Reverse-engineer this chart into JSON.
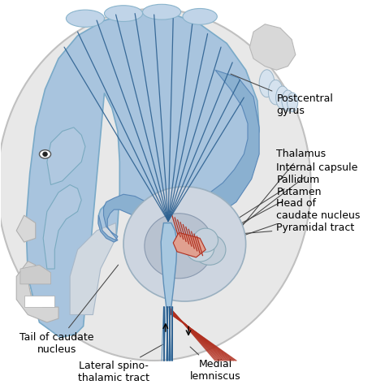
{
  "bg_color": "#ffffff",
  "blue_light": "#b8cce4",
  "blue_mid": "#7aaac8",
  "blue_dark": "#2c6090",
  "blue_cortex": "#a8c4de",
  "gray_head": "#d8d8d8",
  "gray_light": "#e0e0e0",
  "gray_med": "#c0c0c0",
  "thal_gray": "#c8cdd8",
  "thal_inner": "#b8bdc8",
  "red_stripe": "#b03020",
  "red_fill": "#d06050",
  "label_color": "#000000",
  "font_size": 9,
  "figsize": [
    4.74,
    4.79
  ],
  "dpi": 100,
  "labels": {
    "postcentral_gyrus": "Postcentral\ngyrus",
    "thalamus": "Thalamus",
    "internal_capsule": "Internal capsule",
    "pallidum": "Pallidum",
    "putamen": "Putamen",
    "head_caudate": "Head of\ncaudate nucleus",
    "pyramidal_tract": "Pyramidal tract",
    "tail_caudate": "Tail of caudate\nnucleus",
    "lateral_spino": "Lateral spino-\nthalamic tract",
    "medial_lemniscus": "Medial\nlemniscus"
  }
}
